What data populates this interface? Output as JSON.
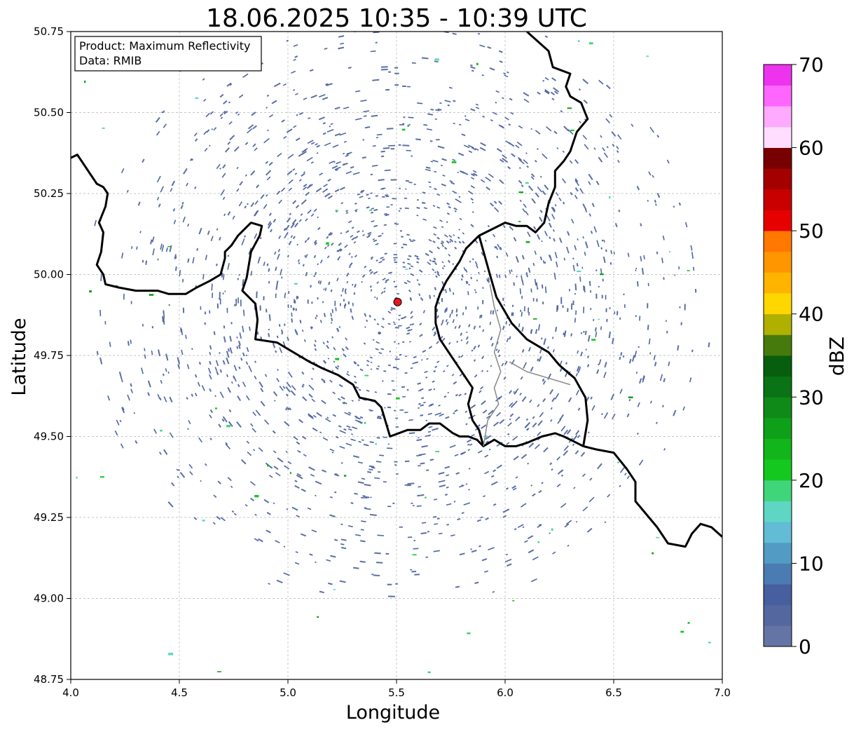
{
  "chart_data": {
    "type": "heatmap",
    "title": "18.06.2025 10:35 - 10:39 UTC",
    "xlabel": "Longitude",
    "ylabel": "Latitude",
    "xlim": [
      4.0,
      7.0
    ],
    "ylim": [
      48.75,
      50.75
    ],
    "x_ticks": [
      4.0,
      4.5,
      5.0,
      5.5,
      6.0,
      6.5,
      7.0
    ],
    "x_tick_labels": [
      "4.0",
      "4.5",
      "5.0",
      "5.5",
      "6.0",
      "6.5",
      "7.0"
    ],
    "y_ticks": [
      48.75,
      49.0,
      49.25,
      49.5,
      49.75,
      50.0,
      50.25,
      50.5,
      50.75
    ],
    "y_tick_labels": [
      "48.75",
      "49.00",
      "49.25",
      "49.50",
      "49.75",
      "50.00",
      "50.25",
      "50.50",
      "50.75"
    ],
    "grid": true,
    "info_box": {
      "line1": "Product: Maximum Reflectivity",
      "line2": "Data: RMIB"
    },
    "radar_site": {
      "lon": 5.505,
      "lat": 49.915,
      "color": "#e41a1c"
    },
    "coverage": {
      "center_lon": 5.505,
      "center_lat": 49.915,
      "dense_radius_deg": 0.55,
      "outer_radius_deg": 1.45
    },
    "colorbar": {
      "label": "dBZ",
      "min": 0,
      "max": 70,
      "step": 2.5,
      "tick_values": [
        0,
        10,
        20,
        30,
        40,
        50,
        60,
        70
      ],
      "tick_labels": [
        "0",
        "10",
        "20",
        "30",
        "40",
        "50",
        "60",
        "70"
      ],
      "colors": [
        "#6475a5",
        "#55679f",
        "#475e9f",
        "#4a7bb2",
        "#529bc4",
        "#62bcd6",
        "#5fd6c4",
        "#3fd67a",
        "#15c81f",
        "#12b51a",
        "#0fa01a",
        "#0f8a18",
        "#0a7315",
        "#075e0e",
        "#467a0c",
        "#b0b000",
        "#ffd700",
        "#ffb400",
        "#ff9600",
        "#ff7800",
        "#e60000",
        "#c80000",
        "#a50000",
        "#780000",
        "#ffddff",
        "#ffaaff",
        "#ff66ff",
        "#ee33ee"
      ]
    },
    "borders": {
      "national_color": "#000000",
      "regional_color": "#888888",
      "lines": [
        {
          "kind": "national",
          "points": [
            [
              4.0,
              50.36
            ],
            [
              4.03,
              50.37
            ],
            [
              4.06,
              50.34
            ],
            [
              4.09,
              50.31
            ],
            [
              4.12,
              50.28
            ],
            [
              4.15,
              50.27
            ],
            [
              4.17,
              50.25
            ],
            [
              4.16,
              50.21
            ],
            [
              4.13,
              50.16
            ],
            [
              4.15,
              50.13
            ],
            [
              4.14,
              50.07
            ],
            [
              4.12,
              50.03
            ],
            [
              4.15,
              50.0
            ],
            [
              4.16,
              49.97
            ],
            [
              4.22,
              49.96
            ],
            [
              4.3,
              49.95
            ],
            [
              4.4,
              49.95
            ],
            [
              4.45,
              49.94
            ],
            [
              4.53,
              49.94
            ],
            [
              4.58,
              49.96
            ],
            [
              4.64,
              49.98
            ],
            [
              4.69,
              50.0
            ],
            [
              4.71,
              50.05
            ],
            [
              4.71,
              50.07
            ],
            [
              4.74,
              50.09
            ],
            [
              4.77,
              50.12
            ],
            [
              4.83,
              50.16
            ],
            [
              4.88,
              50.15
            ],
            [
              4.87,
              50.12
            ],
            [
              4.83,
              50.07
            ],
            [
              4.82,
              50.03
            ],
            [
              4.81,
              49.99
            ],
            [
              4.79,
              49.95
            ],
            [
              4.85,
              49.91
            ],
            [
              4.86,
              49.86
            ],
            [
              4.85,
              49.8
            ],
            [
              4.95,
              49.79
            ],
            [
              5.0,
              49.77
            ],
            [
              5.05,
              49.75
            ],
            [
              5.1,
              49.73
            ],
            [
              5.16,
              49.71
            ],
            [
              5.23,
              49.69
            ],
            [
              5.3,
              49.66
            ],
            [
              5.33,
              49.62
            ],
            [
              5.4,
              49.61
            ],
            [
              5.43,
              49.59
            ],
            [
              5.47,
              49.5
            ],
            [
              5.55,
              49.52
            ],
            [
              5.61,
              49.52
            ],
            [
              5.65,
              49.54
            ],
            [
              5.7,
              49.54
            ],
            [
              5.76,
              49.51
            ],
            [
              5.79,
              49.5
            ],
            [
              5.83,
              49.5
            ],
            [
              5.87,
              49.49
            ],
            [
              5.9,
              49.47
            ],
            [
              5.95,
              49.49
            ],
            [
              6.0,
              49.47
            ],
            [
              6.05,
              49.47
            ],
            [
              6.1,
              49.48
            ],
            [
              6.17,
              49.5
            ],
            [
              6.23,
              49.51
            ],
            [
              6.27,
              49.5
            ],
            [
              6.33,
              49.48
            ],
            [
              6.36,
              49.47
            ]
          ]
        },
        {
          "kind": "national",
          "points": [
            [
              5.9,
              49.47
            ],
            [
              5.88,
              49.52
            ],
            [
              5.85,
              49.55
            ],
            [
              5.83,
              49.6
            ],
            [
              5.85,
              49.65
            ],
            [
              5.8,
              49.7
            ],
            [
              5.77,
              49.73
            ],
            [
              5.72,
              49.78
            ],
            [
              5.7,
              49.8
            ],
            [
              5.68,
              49.85
            ],
            [
              5.68,
              49.9
            ],
            [
              5.7,
              49.94
            ],
            [
              5.73,
              49.98
            ],
            [
              5.79,
              50.04
            ],
            [
              5.82,
              50.08
            ],
            [
              5.88,
              50.12
            ],
            [
              6.0,
              50.16
            ],
            [
              6.05,
              50.15
            ],
            [
              6.1,
              50.15
            ],
            [
              6.14,
              50.13
            ],
            [
              6.18,
              50.16
            ],
            [
              6.2,
              50.22
            ],
            [
              6.23,
              50.27
            ],
            [
              6.23,
              50.32
            ],
            [
              6.27,
              50.35
            ],
            [
              6.3,
              50.38
            ],
            [
              6.33,
              50.44
            ],
            [
              6.38,
              50.48
            ],
            [
              6.35,
              50.53
            ],
            [
              6.3,
              50.55
            ],
            [
              6.28,
              50.58
            ],
            [
              6.3,
              50.62
            ],
            [
              6.22,
              50.64
            ],
            [
              6.2,
              50.69
            ],
            [
              6.15,
              50.72
            ],
            [
              6.1,
              50.75
            ]
          ]
        },
        {
          "kind": "national",
          "points": [
            [
              5.88,
              50.12
            ],
            [
              5.93,
              50.0
            ],
            [
              5.96,
              49.93
            ],
            [
              6.03,
              49.85
            ],
            [
              6.1,
              49.8
            ],
            [
              6.2,
              49.76
            ],
            [
              6.25,
              49.72
            ],
            [
              6.32,
              49.68
            ],
            [
              6.37,
              49.62
            ],
            [
              6.38,
              49.55
            ],
            [
              6.36,
              49.47
            ]
          ]
        },
        {
          "kind": "national",
          "points": [
            [
              6.36,
              49.47
            ],
            [
              6.42,
              49.46
            ],
            [
              6.5,
              49.45
            ],
            [
              6.56,
              49.4
            ],
            [
              6.6,
              49.36
            ],
            [
              6.6,
              49.3
            ],
            [
              6.65,
              49.26
            ],
            [
              6.7,
              49.22
            ],
            [
              6.75,
              49.17
            ],
            [
              6.83,
              49.16
            ],
            [
              6.86,
              49.2
            ],
            [
              6.9,
              49.23
            ],
            [
              6.95,
              49.22
            ],
            [
              7.0,
              49.19
            ]
          ]
        },
        {
          "kind": "regional",
          "points": [
            [
              5.9,
              49.47
            ],
            [
              5.92,
              49.55
            ],
            [
              5.97,
              49.6
            ],
            [
              5.95,
              49.65
            ],
            [
              5.98,
              49.7
            ],
            [
              5.95,
              49.76
            ],
            [
              5.98,
              49.83
            ],
            [
              5.95,
              49.9
            ],
            [
              5.93,
              49.97
            ]
          ]
        },
        {
          "kind": "regional",
          "points": [
            [
              6.02,
              49.73
            ],
            [
              6.1,
              49.7
            ],
            [
              6.2,
              49.68
            ],
            [
              6.3,
              49.66
            ]
          ]
        }
      ]
    }
  }
}
